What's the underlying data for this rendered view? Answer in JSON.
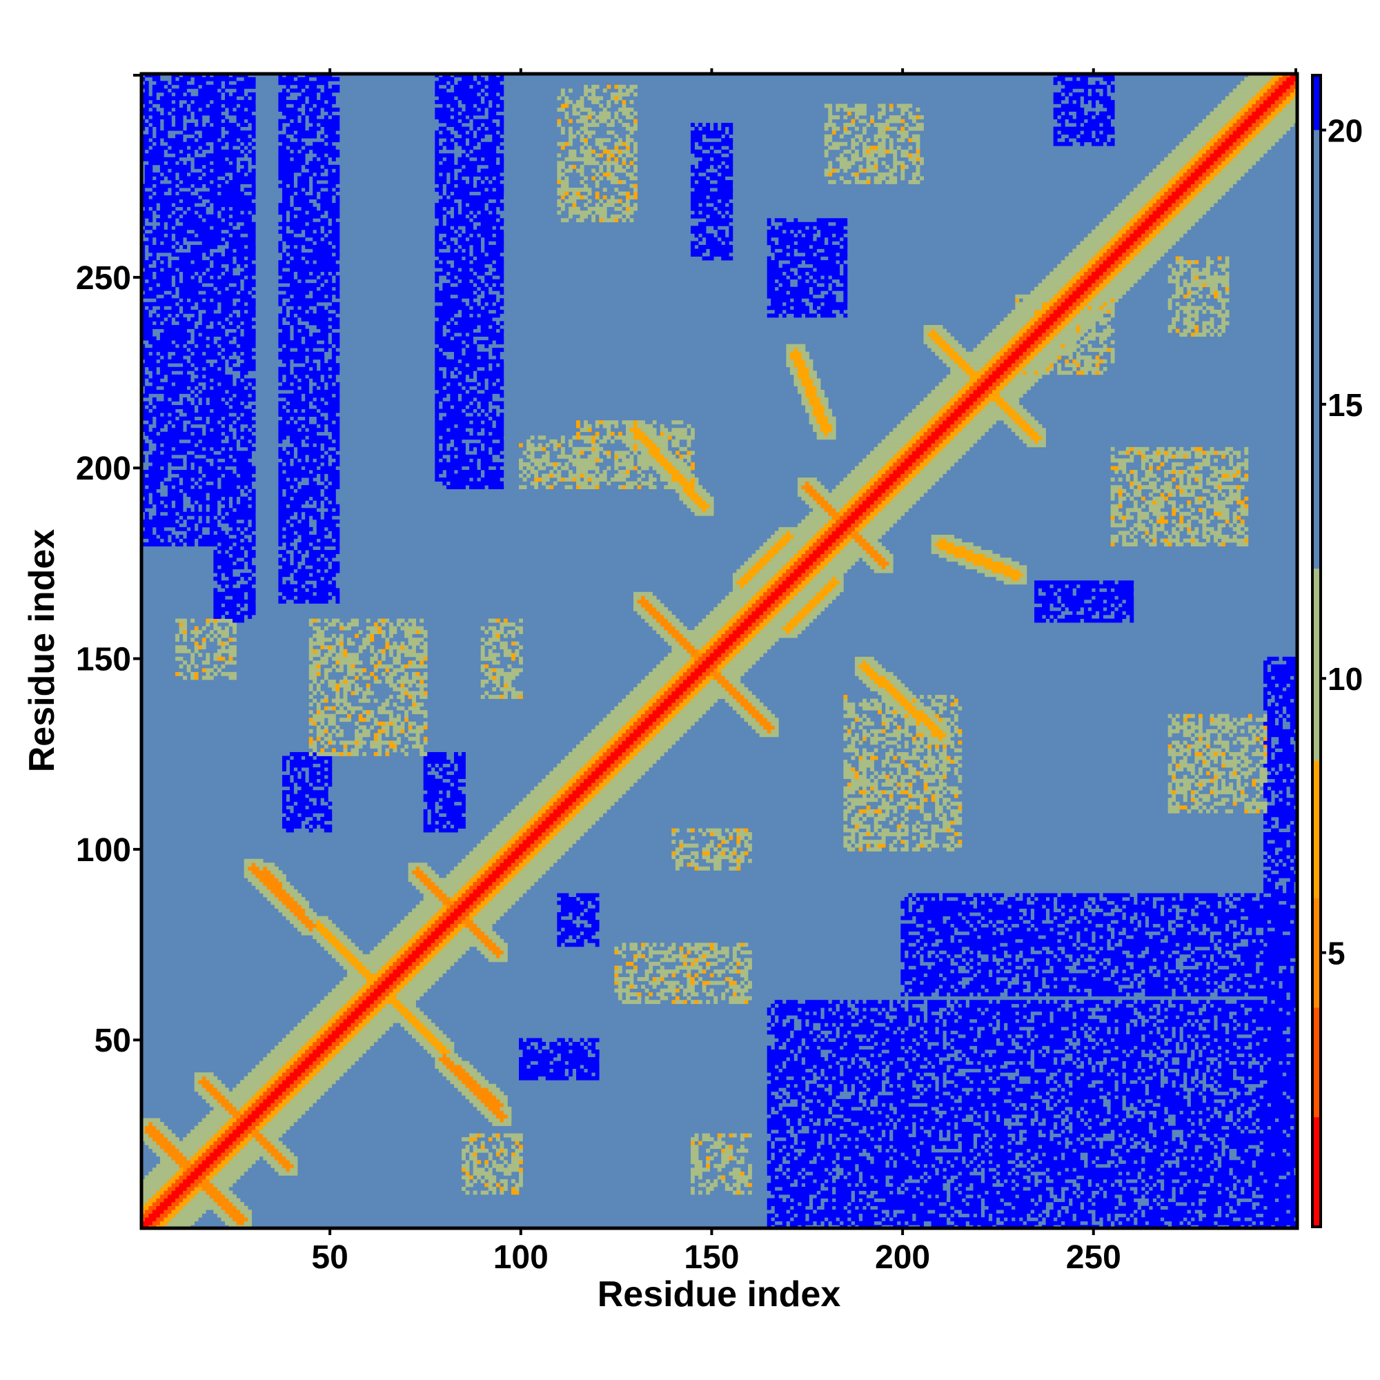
{
  "chart_data": {
    "type": "heatmap",
    "title": "",
    "xlabel": "Residue index",
    "ylabel": "Residue index",
    "xlim": [
      1,
      303
    ],
    "ylim": [
      1,
      303
    ],
    "x_ticks": [
      50,
      100,
      150,
      200,
      250
    ],
    "y_ticks": [
      50,
      100,
      150,
      200,
      250
    ],
    "colorbar": {
      "range": [
        0,
        21
      ],
      "ticks": [
        5,
        10,
        15,
        20
      ],
      "bands": [
        {
          "from": 0,
          "to": 2,
          "color": "#ff0000"
        },
        {
          "from": 2,
          "to": 4,
          "color": "#ff5500"
        },
        {
          "from": 4,
          "to": 6,
          "color": "#ff8c00"
        },
        {
          "from": 6,
          "to": 8.5,
          "color": "#ffa500"
        },
        {
          "from": 8.5,
          "to": 12,
          "color": "#a9bd85"
        },
        {
          "from": 12,
          "to": 20,
          "color": "#5b87b9"
        },
        {
          "from": 20,
          "to": 21,
          "color": "#0000ff"
        }
      ]
    },
    "diagonal": {
      "from": 1,
      "to": 303,
      "value": 0
    },
    "contact_arms": [
      {
        "a": [
          3,
          27
        ],
        "b": [
          26,
          3
        ],
        "value": 5
      },
      {
        "a": [
          17,
          39
        ],
        "b": [
          39,
          17
        ],
        "value": 5
      },
      {
        "a": [
          30,
          95
        ],
        "b": [
          41,
          84
        ],
        "value": 5
      },
      {
        "a": [
          73,
          94
        ],
        "b": [
          94,
          73
        ],
        "value": 5
      },
      {
        "a": [
          80,
          45
        ],
        "b": [
          94,
          33
        ],
        "value": 5
      },
      {
        "a": [
          47,
          80
        ],
        "b": [
          80,
          47
        ],
        "value": 8
      },
      {
        "a": [
          132,
          165
        ],
        "b": [
          165,
          132
        ],
        "value": 5
      },
      {
        "a": [
          170,
          158
        ],
        "b": [
          182,
          170
        ],
        "value": 8
      },
      {
        "a": [
          175,
          195
        ],
        "b": [
          195,
          175
        ],
        "value": 5
      },
      {
        "a": [
          130,
          210
        ],
        "b": [
          148,
          190
        ],
        "value": 8
      },
      {
        "a": [
          210,
          180
        ],
        "b": [
          230,
          172
        ],
        "value": 8
      },
      {
        "a": [
          215,
          228
        ],
        "b": [
          235,
          208
        ],
        "value": 8
      }
    ],
    "near_regions": [
      {
        "x": [
          115,
          145
        ],
        "y": [
          195,
          212
        ],
        "value": 10
      },
      {
        "x": [
          100,
          120
        ],
        "y": [
          195,
          208
        ],
        "value": 9
      },
      {
        "x": [
          185,
          215
        ],
        "y": [
          100,
          140
        ],
        "value": 10
      },
      {
        "x": [
          270,
          295
        ],
        "y": [
          110,
          135
        ],
        "value": 10
      },
      {
        "x": [
          255,
          290
        ],
        "y": [
          180,
          205
        ],
        "value": 10
      },
      {
        "x": [
          110,
          130
        ],
        "y": [
          265,
          300
        ],
        "value": 10
      },
      {
        "x": [
          180,
          205
        ],
        "y": [
          275,
          295
        ],
        "value": 10
      },
      {
        "x": [
          45,
          75
        ],
        "y": [
          125,
          160
        ],
        "value": 11
      },
      {
        "x": [
          90,
          100
        ],
        "y": [
          140,
          160
        ],
        "value": 9
      },
      {
        "x": [
          125,
          160
        ],
        "y": [
          60,
          75
        ],
        "value": 10
      },
      {
        "x": [
          140,
          160
        ],
        "y": [
          95,
          105
        ],
        "value": 9
      },
      {
        "x": [
          10,
          25
        ],
        "y": [
          145,
          160
        ],
        "value": 11
      },
      {
        "x": [
          85,
          100
        ],
        "y": [
          10,
          25
        ],
        "value": 11
      },
      {
        "x": [
          145,
          160
        ],
        "y": [
          10,
          25
        ],
        "value": 11
      },
      {
        "x": [
          230,
          255
        ],
        "y": [
          225,
          245
        ],
        "value": 9
      },
      {
        "x": [
          270,
          285
        ],
        "y": [
          235,
          255
        ],
        "value": 9
      }
    ],
    "far_regions": [
      {
        "x": [
          1,
          20
        ],
        "y": [
          180,
          303
        ],
        "value": 21
      },
      {
        "x": [
          20,
          30
        ],
        "y": [
          160,
          303
        ],
        "value": 21
      },
      {
        "x": [
          37,
          52
        ],
        "y": [
          165,
          303
        ],
        "value": 21
      },
      {
        "x": [
          78,
          95
        ],
        "y": [
          195,
          303
        ],
        "value": 21
      },
      {
        "x": [
          75,
          85
        ],
        "y": [
          105,
          125
        ],
        "value": 21
      },
      {
        "x": [
          38,
          50
        ],
        "y": [
          105,
          125
        ],
        "value": 21
      },
      {
        "x": [
          165,
          303
        ],
        "y": [
          1,
          60
        ],
        "value": 21
      },
      {
        "x": [
          200,
          303
        ],
        "y": [
          62,
          88
        ],
        "value": 21
      },
      {
        "x": [
          110,
          120
        ],
        "y": [
          75,
          88
        ],
        "value": 21
      },
      {
        "x": [
          100,
          120
        ],
        "y": [
          40,
          50
        ],
        "value": 21
      },
      {
        "x": [
          295,
          303
        ],
        "y": [
          1,
          150
        ],
        "value": 21
      },
      {
        "x": [
          235,
          260
        ],
        "y": [
          160,
          170
        ],
        "value": 21
      },
      {
        "x": [
          165,
          185
        ],
        "y": [
          240,
          265
        ],
        "value": 21
      },
      {
        "x": [
          145,
          155
        ],
        "y": [
          255,
          290
        ],
        "value": 21
      },
      {
        "x": [
          240,
          255
        ],
        "y": [
          285,
          303
        ],
        "value": 21
      }
    ]
  }
}
